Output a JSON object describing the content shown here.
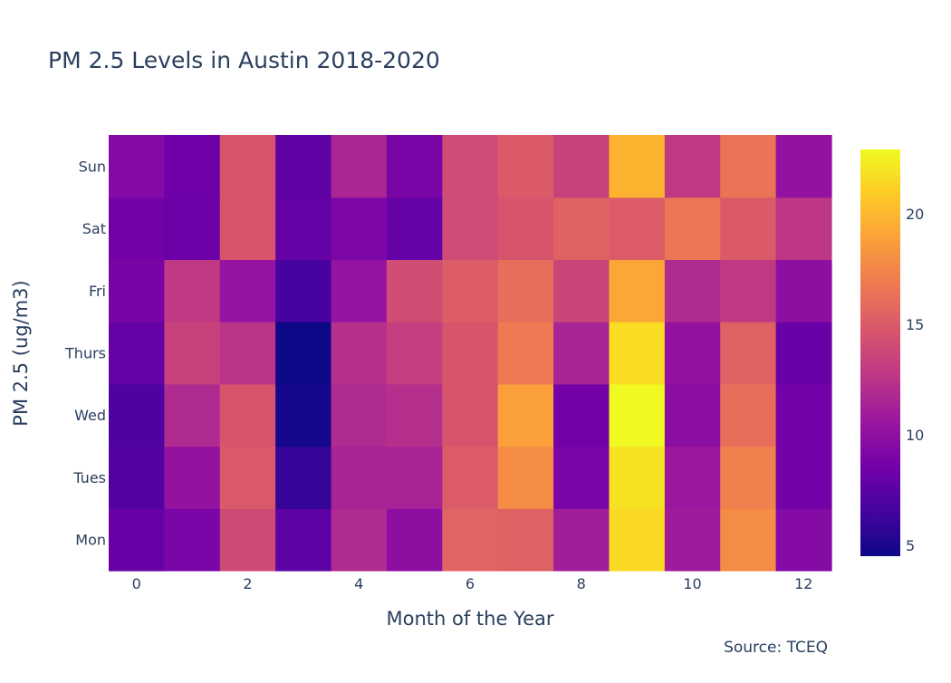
{
  "chart_data": {
    "type": "heatmap",
    "title": "PM 2.5 Levels in Austin 2018-2020",
    "xlabel": "Month of the Year",
    "ylabel": "PM 2.5 (ug/m3)",
    "source": "Source: TCEQ",
    "x": [
      0,
      1,
      2,
      3,
      4,
      5,
      6,
      7,
      8,
      9,
      10,
      11,
      12
    ],
    "x_tick_labels": [
      "0",
      "2",
      "4",
      "6",
      "8",
      "10",
      "12"
    ],
    "y_categories": [
      "Mon",
      "Tues",
      "Wed",
      "Thurs",
      "Fri",
      "Sat",
      "Sun"
    ],
    "values": [
      [
        8.1,
        9.0,
        13.9,
        7.6,
        11.9,
        9.9,
        15.5,
        15.3,
        11.0,
        21.5,
        10.9,
        17.8,
        9.4
      ],
      [
        7.1,
        10.2,
        14.8,
        5.9,
        11.4,
        11.4,
        15.0,
        17.8,
        9.0,
        21.9,
        10.6,
        17.2,
        8.6
      ],
      [
        6.9,
        11.9,
        14.6,
        4.8,
        11.9,
        12.2,
        14.6,
        18.8,
        8.6,
        22.9,
        9.8,
        16.1,
        8.6
      ],
      [
        8.0,
        13.4,
        12.5,
        4.5,
        12.2,
        13.2,
        14.6,
        16.8,
        11.4,
        21.7,
        10.2,
        15.4,
        8.2
      ],
      [
        8.9,
        12.9,
        10.3,
        6.6,
        10.3,
        14.1,
        15.1,
        16.1,
        13.6,
        19.2,
        11.9,
        12.9,
        9.9
      ],
      [
        8.6,
        8.3,
        14.6,
        8.0,
        9.1,
        8.0,
        14.0,
        14.6,
        15.4,
        15.0,
        16.6,
        14.9,
        12.7
      ],
      [
        9.4,
        8.5,
        14.6,
        7.7,
        11.6,
        9.0,
        14.0,
        14.9,
        13.4,
        19.8,
        12.8,
        16.5,
        10.2
      ]
    ],
    "zmin": 4.5,
    "zmax": 22.9,
    "colorscale": "plasma",
    "colorbar_ticks": [
      5,
      10,
      15,
      20
    ],
    "colors": [
      "#0d0887",
      "#46039f",
      "#7201a8",
      "#9c179e",
      "#bd3786",
      "#d8576b",
      "#ed7953",
      "#fb9f3a",
      "#fdca26",
      "#f0f921"
    ]
  }
}
